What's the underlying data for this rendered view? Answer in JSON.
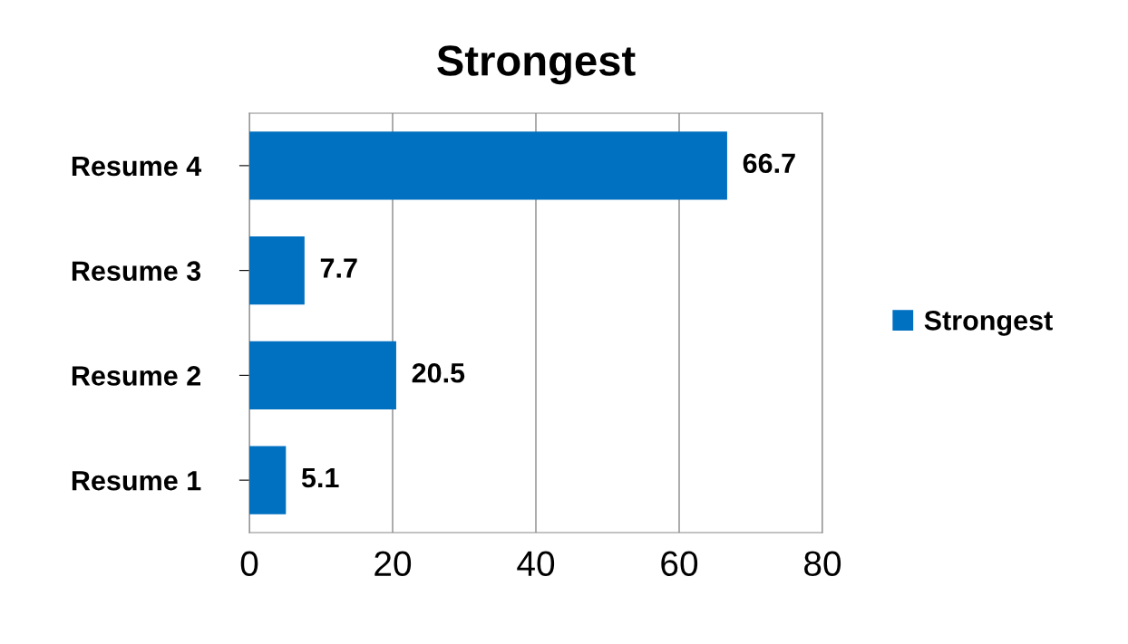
{
  "chart_data": {
    "type": "bar",
    "orientation": "horizontal",
    "title": "Strongest",
    "categories": [
      "Resume 4",
      "Resume 3",
      "Resume 2",
      "Resume 1"
    ],
    "series": [
      {
        "name": "Strongest",
        "color": "#0070c0",
        "values": [
          66.7,
          7.7,
          20.5,
          5.1
        ]
      }
    ],
    "xlim": [
      0,
      80
    ],
    "xticks": [
      0,
      20,
      40,
      60,
      80
    ],
    "grid": "x",
    "legend": "right",
    "data_labels": true
  }
}
